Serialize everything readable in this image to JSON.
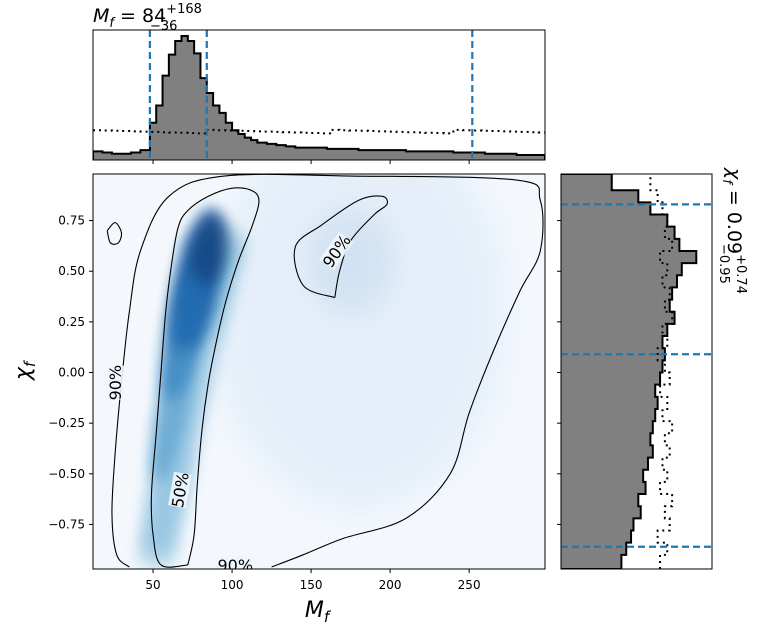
{
  "chart_data": [
    {
      "panel": "top-marginal",
      "type": "histogram",
      "title": {
        "base": "M",
        "sub": "f",
        "eq": " = 84",
        "sup": "+168",
        "low": "−36"
      },
      "x_range": [
        12,
        298
      ],
      "quantile_lines": [
        48,
        84,
        252
      ],
      "line_color": "#1f77b4",
      "posterior": {
        "name": "posterior",
        "color": "#808080",
        "bins": [
          12,
          18,
          24,
          30,
          36,
          42,
          48,
          52,
          56,
          60,
          64,
          68,
          72,
          76,
          80,
          84,
          88,
          92,
          96,
          100,
          104,
          108,
          112,
          116,
          122,
          128,
          134,
          140,
          150,
          160,
          170,
          180,
          190,
          200,
          210,
          220,
          230,
          240,
          250,
          260,
          270,
          280,
          290,
          298
        ],
        "values": [
          0.07,
          0.06,
          0.05,
          0.05,
          0.06,
          0.08,
          0.3,
          0.44,
          0.68,
          0.85,
          0.96,
          1.0,
          0.96,
          0.86,
          0.66,
          0.54,
          0.44,
          0.38,
          0.3,
          0.24,
          0.21,
          0.18,
          0.16,
          0.14,
          0.13,
          0.12,
          0.11,
          0.1,
          0.1,
          0.09,
          0.09,
          0.08,
          0.08,
          0.08,
          0.07,
          0.07,
          0.07,
          0.06,
          0.06,
          0.05,
          0.05,
          0.04,
          0.04
        ]
      },
      "prior": {
        "name": "prior",
        "style": "dotted",
        "value": 0.23
      }
    },
    {
      "panel": "joint-density",
      "type": "heatmap",
      "xlabel": {
        "base": "M",
        "sub": "f"
      },
      "ylabel": {
        "base": "χ",
        "sub": "f"
      },
      "xlim": [
        12,
        298
      ],
      "ylim": [
        -0.97,
        0.98
      ],
      "xticks": [
        50,
        100,
        150,
        200,
        250
      ],
      "yticks": [
        -0.75,
        -0.5,
        -0.25,
        0.0,
        0.25,
        0.5,
        0.75
      ],
      "xtick_labels": [
        "50",
        "100",
        "150",
        "200",
        "250"
      ],
      "ytick_labels": [
        "−0.75",
        "−0.50",
        "−0.25",
        "0.00",
        "0.25",
        "0.50",
        "0.75"
      ],
      "colormap": "Blues",
      "density_ridge": [
        {
          "x": 52,
          "y": -0.9,
          "w": 22
        },
        {
          "x": 64,
          "y": -0.4,
          "w": 26
        },
        {
          "x": 76,
          "y": 0.2,
          "w": 34
        },
        {
          "x": 90,
          "y": 0.65,
          "w": 36
        }
      ],
      "contours": [
        {
          "label": "50%",
          "label_at": [
            67,
            -0.58
          ],
          "label_angle": -80,
          "points": [
            [
              72,
              -0.95
            ],
            [
              55,
              -0.95
            ],
            [
              50,
              -0.8
            ],
            [
              49,
              -0.6
            ],
            [
              52,
              -0.3
            ],
            [
              55,
              0.0
            ],
            [
              58,
              0.3
            ],
            [
              62,
              0.55
            ],
            [
              66,
              0.72
            ],
            [
              72,
              0.8
            ],
            [
              85,
              0.87
            ],
            [
              100,
              0.91
            ],
            [
              112,
              0.9
            ],
            [
              117,
              0.85
            ],
            [
              113,
              0.73
            ],
            [
              104,
              0.55
            ],
            [
              96,
              0.35
            ],
            [
              90,
              0.15
            ],
            [
              85,
              -0.05
            ],
            [
              81,
              -0.28
            ],
            [
              78,
              -0.55
            ],
            [
              76,
              -0.8
            ],
            [
              72,
              -0.95
            ]
          ]
        },
        {
          "label": "90%",
          "label_at": [
            26,
            -0.05
          ],
          "label_angle": -90,
          "points": [
            [
              35,
              -0.96
            ],
            [
              27,
              -0.9
            ],
            [
              24,
              -0.7
            ],
            [
              26,
              -0.4
            ],
            [
              30,
              -0.05
            ],
            [
              35,
              0.3
            ],
            [
              42,
              0.6
            ],
            [
              60,
              0.87
            ],
            [
              95,
              0.97
            ],
            [
              175,
              0.97
            ],
            [
              280,
              0.95
            ],
            [
              295,
              0.85
            ],
            [
              295,
              0.6
            ],
            [
              282,
              0.4
            ],
            [
              265,
              0.1
            ],
            [
              250,
              -0.2
            ],
            [
              238,
              -0.5
            ],
            [
              210,
              -0.72
            ],
            [
              170,
              -0.82
            ],
            [
              145,
              -0.9
            ],
            [
              125,
              -0.96
            ]
          ]
        },
        {
          "label": "90%",
          "label_at": [
            102,
            -0.95
          ],
          "label_angle": 0,
          "points": null
        },
        {
          "label": "90%",
          "label_at": [
            166,
            0.6
          ],
          "label_angle": -55,
          "points": [
            [
              165,
              0.37
            ],
            [
              145,
              0.43
            ],
            [
              140,
              0.62
            ],
            [
              157,
              0.73
            ],
            [
              180,
              0.85
            ],
            [
              195,
              0.87
            ],
            [
              198,
              0.83
            ],
            [
              190,
              0.78
            ],
            [
              175,
              0.65
            ],
            [
              168,
              0.5
            ],
            [
              165,
              0.37
            ]
          ]
        },
        {
          "label": "",
          "points": [
            [
              21,
              0.7
            ],
            [
              26,
              0.74
            ],
            [
              30,
              0.69
            ],
            [
              28,
              0.64
            ],
            [
              23,
              0.64
            ],
            [
              21,
              0.7
            ]
          ]
        }
      ]
    },
    {
      "panel": "right-marginal",
      "type": "histogram",
      "orientation": "horizontal",
      "title": {
        "base": "χ",
        "sub": "f",
        "eq": " = 0.09",
        "sup": "+0.74",
        "low": "−0.95"
      },
      "y_range": [
        -0.97,
        0.98
      ],
      "quantile_lines": [
        -0.86,
        0.09,
        0.83
      ],
      "line_color": "#1f77b4",
      "posterior": {
        "name": "posterior",
        "color": "#808080",
        "edges": [
          -0.97,
          -0.9,
          -0.84,
          -0.78,
          -0.72,
          -0.66,
          -0.6,
          -0.54,
          -0.48,
          -0.42,
          -0.36,
          -0.3,
          -0.24,
          -0.18,
          -0.12,
          -0.06,
          0.0,
          0.06,
          0.12,
          0.18,
          0.24,
          0.3,
          0.36,
          0.42,
          0.48,
          0.54,
          0.6,
          0.66,
          0.72,
          0.78,
          0.84,
          0.9,
          0.98
        ],
        "values": [
          0.5,
          0.54,
          0.58,
          0.6,
          0.66,
          0.64,
          0.7,
          0.68,
          0.72,
          0.76,
          0.74,
          0.76,
          0.78,
          0.8,
          0.78,
          0.82,
          0.84,
          0.86,
          0.84,
          0.88,
          0.94,
          0.9,
          0.92,
          0.96,
          1.0,
          1.12,
          0.98,
          0.94,
          0.88,
          0.74,
          0.64,
          0.42
        ]
      },
      "prior": {
        "name": "prior",
        "style": "dotted",
        "values": [
          0.82,
          0.88,
          0.8,
          0.9,
          0.86,
          0.92,
          0.82,
          0.88,
          0.84,
          0.9,
          0.86,
          0.92,
          0.84,
          0.88,
          0.82,
          0.9,
          0.86,
          0.8,
          0.88,
          0.84,
          0.92,
          0.86,
          0.9,
          0.84,
          0.88,
          0.82,
          0.92,
          0.86,
          0.88,
          0.84,
          0.8,
          0.74
        ]
      }
    }
  ]
}
